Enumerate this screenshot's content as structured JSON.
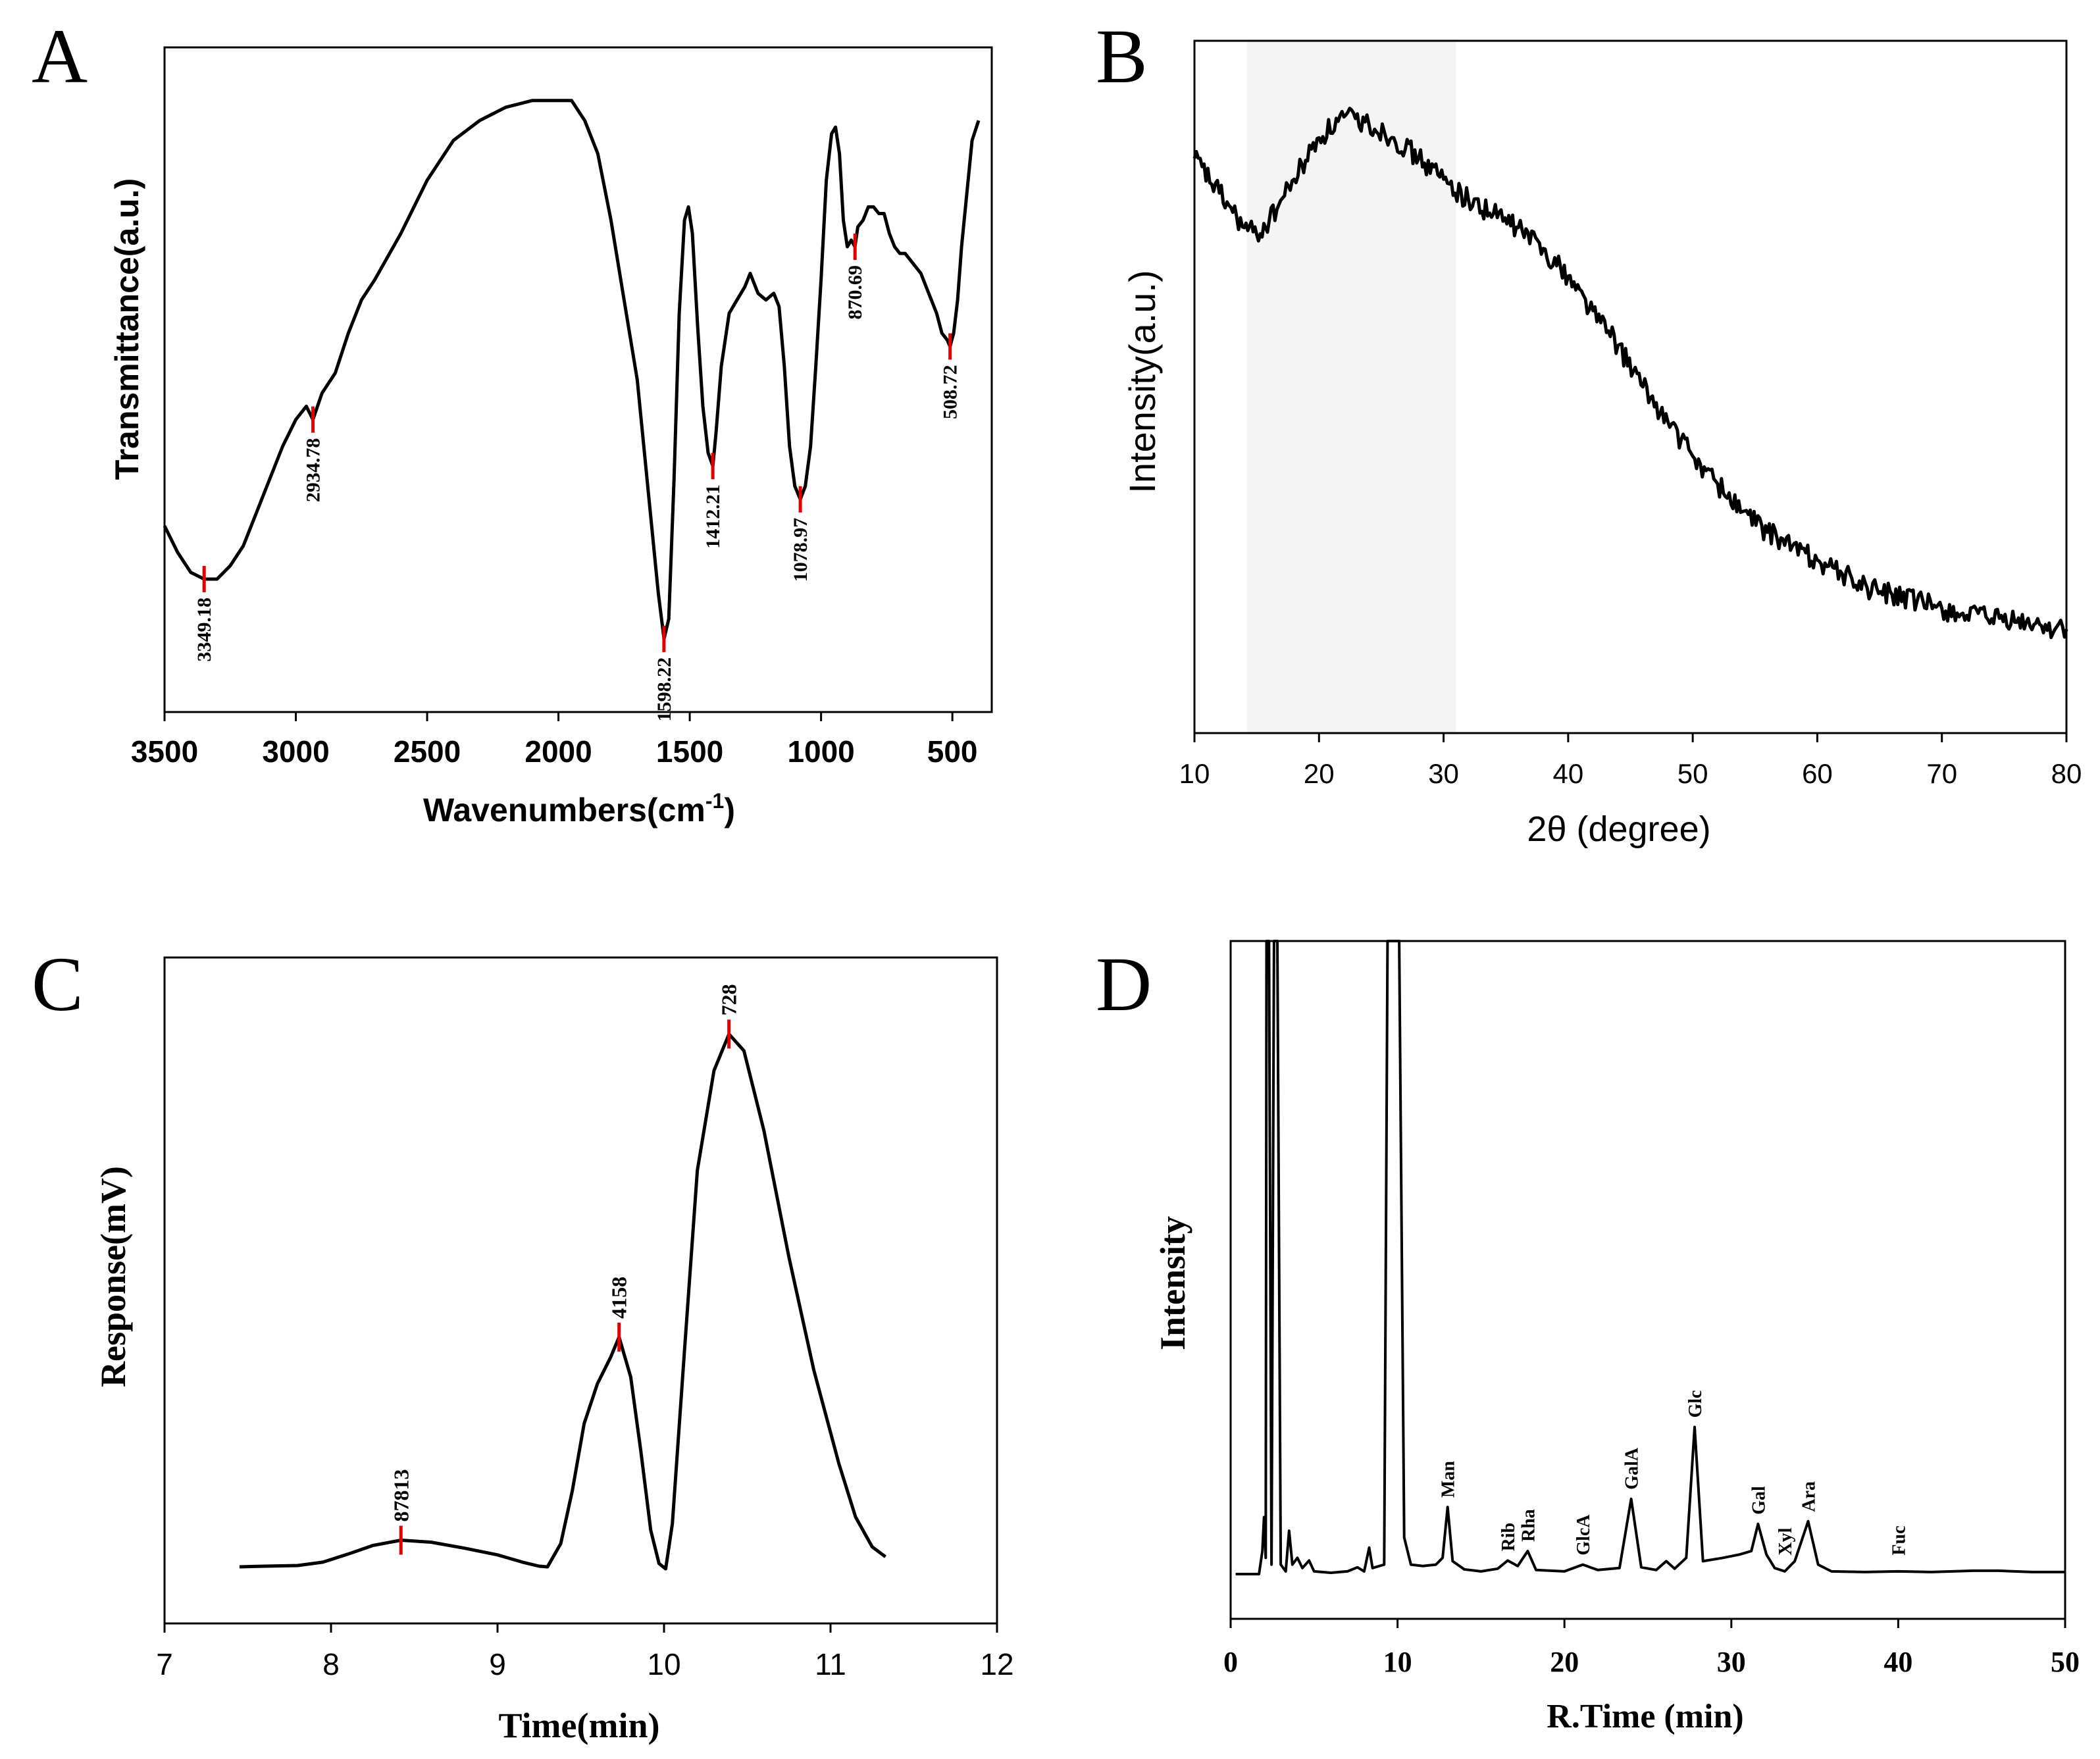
{
  "chart_data": [
    {
      "panel": "A",
      "type": "line",
      "xlabel": "Wavenumbers(cm",
      "xlabel_sup": "-1",
      "xlabel_close": ")",
      "ylabel": "Transmittance(a.u.)",
      "xlim": [
        3500,
        350
      ],
      "ylim": [
        0,
        100
      ],
      "xticks": [
        "3500",
        "3000",
        "2500",
        "2000",
        "1500",
        "1000",
        "500"
      ],
      "peak_labels": [
        "3349.18",
        "2934.78",
        "1598.22",
        "1412.21",
        "1078.97",
        "870.69",
        "508.72"
      ],
      "peaks": [
        {
          "x": 3349.18,
          "y": 20
        },
        {
          "x": 2934.78,
          "y": 44
        },
        {
          "x": 1598.22,
          "y": 11
        },
        {
          "x": 1412.21,
          "y": 37
        },
        {
          "x": 1078.97,
          "y": 32
        },
        {
          "x": 870.69,
          "y": 70
        },
        {
          "x": 508.72,
          "y": 55
        }
      ],
      "series": [
        [
          3500,
          28
        ],
        [
          3450,
          24
        ],
        [
          3400,
          21
        ],
        [
          3349,
          20
        ],
        [
          3300,
          20
        ],
        [
          3250,
          22
        ],
        [
          3200,
          25
        ],
        [
          3150,
          30
        ],
        [
          3100,
          35
        ],
        [
          3050,
          40
        ],
        [
          3000,
          44
        ],
        [
          2960,
          46
        ],
        [
          2935,
          44
        ],
        [
          2900,
          48
        ],
        [
          2850,
          51
        ],
        [
          2800,
          57
        ],
        [
          2750,
          62
        ],
        [
          2700,
          65
        ],
        [
          2600,
          72
        ],
        [
          2500,
          80
        ],
        [
          2400,
          86
        ],
        [
          2300,
          89
        ],
        [
          2250,
          90
        ],
        [
          2200,
          91
        ],
        [
          2100,
          92
        ],
        [
          2000,
          92
        ],
        [
          1950,
          92
        ],
        [
          1900,
          89
        ],
        [
          1850,
          84
        ],
        [
          1800,
          74
        ],
        [
          1750,
          62
        ],
        [
          1700,
          50
        ],
        [
          1650,
          30
        ],
        [
          1620,
          18
        ],
        [
          1598,
          11
        ],
        [
          1580,
          14
        ],
        [
          1560,
          35
        ],
        [
          1540,
          60
        ],
        [
          1520,
          74
        ],
        [
          1505,
          76
        ],
        [
          1490,
          72
        ],
        [
          1470,
          58
        ],
        [
          1450,
          46
        ],
        [
          1430,
          39
        ],
        [
          1412,
          37
        ],
        [
          1400,
          42
        ],
        [
          1380,
          52
        ],
        [
          1350,
          60
        ],
        [
          1320,
          62
        ],
        [
          1290,
          64
        ],
        [
          1270,
          66
        ],
        [
          1240,
          63
        ],
        [
          1210,
          62
        ],
        [
          1180,
          63
        ],
        [
          1160,
          61
        ],
        [
          1140,
          52
        ],
        [
          1120,
          40
        ],
        [
          1100,
          34
        ],
        [
          1079,
          32
        ],
        [
          1060,
          34
        ],
        [
          1040,
          40
        ],
        [
          1020,
          52
        ],
        [
          1000,
          65
        ],
        [
          980,
          80
        ],
        [
          960,
          87
        ],
        [
          945,
          88
        ],
        [
          930,
          84
        ],
        [
          915,
          74
        ],
        [
          900,
          70
        ],
        [
          885,
          71
        ],
        [
          871,
          70
        ],
        [
          860,
          73
        ],
        [
          840,
          74
        ],
        [
          820,
          76
        ],
        [
          800,
          76
        ],
        [
          780,
          75
        ],
        [
          760,
          75
        ],
        [
          740,
          72
        ],
        [
          720,
          70
        ],
        [
          700,
          69
        ],
        [
          680,
          69
        ],
        [
          660,
          68
        ],
        [
          640,
          67
        ],
        [
          620,
          66
        ],
        [
          600,
          64
        ],
        [
          580,
          62
        ],
        [
          560,
          60
        ],
        [
          540,
          57
        ],
        [
          520,
          56
        ],
        [
          509,
          55
        ],
        [
          495,
          57
        ],
        [
          480,
          62
        ],
        [
          465,
          70
        ],
        [
          450,
          76
        ],
        [
          435,
          82
        ],
        [
          425,
          86
        ],
        [
          400,
          89
        ]
      ]
    },
    {
      "panel": "B",
      "type": "line",
      "xlabel": "2θ (degree)",
      "ylabel": "Intensity(a.u.)",
      "xlim": [
        10,
        80
      ],
      "ylim": [
        0,
        100
      ],
      "xticks": [
        "10",
        "20",
        "30",
        "40",
        "50",
        "60",
        "70",
        "80"
      ],
      "shaded_region": [
        14.2,
        31
      ],
      "series": [
        [
          10,
          83
        ],
        [
          12,
          78
        ],
        [
          14,
          73
        ],
        [
          15,
          72
        ],
        [
          16,
          74
        ],
        [
          18,
          80
        ],
        [
          20,
          86
        ],
        [
          22,
          89
        ],
        [
          24,
          88
        ],
        [
          26,
          86
        ],
        [
          28,
          83
        ],
        [
          30,
          80
        ],
        [
          32,
          77
        ],
        [
          34,
          75
        ],
        [
          36,
          73
        ],
        [
          38,
          70
        ],
        [
          40,
          66
        ],
        [
          42,
          61
        ],
        [
          44,
          56
        ],
        [
          46,
          50
        ],
        [
          48,
          45
        ],
        [
          50,
          40
        ],
        [
          52,
          36
        ],
        [
          54,
          32
        ],
        [
          56,
          29
        ],
        [
          58,
          27
        ],
        [
          60,
          25
        ],
        [
          62,
          23
        ],
        [
          64,
          21
        ],
        [
          66,
          20
        ],
        [
          68,
          19
        ],
        [
          70,
          18
        ],
        [
          72,
          17
        ],
        [
          74,
          16.5
        ],
        [
          76,
          16
        ],
        [
          78,
          15.5
        ],
        [
          80,
          15
        ]
      ]
    },
    {
      "panel": "C",
      "type": "line",
      "xlabel": "Time(min)",
      "ylabel": "Response(mV)",
      "xlim": [
        7,
        12
      ],
      "ylim": [
        0,
        100
      ],
      "xticks": [
        "7",
        "8",
        "9",
        "10",
        "11",
        "12"
      ],
      "peak_labels": [
        "87813",
        "4158",
        "728"
      ],
      "peaks": [
        {
          "x": 8.42,
          "y": 12.5
        },
        {
          "x": 9.73,
          "y": 43
        },
        {
          "x": 10.39,
          "y": 88.5
        }
      ],
      "series": [
        [
          7.45,
          8.5
        ],
        [
          7.6,
          8.6
        ],
        [
          7.8,
          8.7
        ],
        [
          7.95,
          9.2
        ],
        [
          8.1,
          10.4
        ],
        [
          8.25,
          11.7
        ],
        [
          8.42,
          12.5
        ],
        [
          8.6,
          12.2
        ],
        [
          8.8,
          11.3
        ],
        [
          9.0,
          10.3
        ],
        [
          9.15,
          9.2
        ],
        [
          9.25,
          8.6
        ],
        [
          9.3,
          8.5
        ],
        [
          9.38,
          12
        ],
        [
          9.45,
          20
        ],
        [
          9.52,
          30
        ],
        [
          9.6,
          36
        ],
        [
          9.68,
          40
        ],
        [
          9.73,
          43
        ],
        [
          9.8,
          37
        ],
        [
          9.86,
          26
        ],
        [
          9.92,
          14
        ],
        [
          9.97,
          9
        ],
        [
          10.01,
          8.2
        ],
        [
          10.05,
          15
        ],
        [
          10.12,
          40
        ],
        [
          10.2,
          68
        ],
        [
          10.3,
          83
        ],
        [
          10.39,
          88.5
        ],
        [
          10.48,
          86
        ],
        [
          10.6,
          74
        ],
        [
          10.75,
          55
        ],
        [
          10.9,
          38
        ],
        [
          11.05,
          24
        ],
        [
          11.15,
          16
        ],
        [
          11.25,
          11.5
        ],
        [
          11.33,
          10
        ]
      ]
    },
    {
      "panel": "D",
      "type": "line",
      "xlabel": "R.Time (min)",
      "ylabel": "Intensity",
      "xlim": [
        0,
        50
      ],
      "ylim": [
        0,
        100
      ],
      "xticks": [
        "0",
        "10",
        "20",
        "30",
        "40",
        "50"
      ],
      "peak_labels": [
        {
          "name": "Man",
          "x": 13.0
        },
        {
          "name": "Rib",
          "x": 16.6
        },
        {
          "name": "Rha",
          "x": 17.8
        },
        {
          "name": "GlcA",
          "x": 21.1
        },
        {
          "name": "GalA",
          "x": 24.0
        },
        {
          "name": "Glc",
          "x": 27.8
        },
        {
          "name": "Gal",
          "x": 31.6
        },
        {
          "name": "Xyl",
          "x": 33.2
        },
        {
          "name": "Ara",
          "x": 34.6
        },
        {
          "name": "Fuc",
          "x": 40.0
        }
      ],
      "series": [
        [
          0.3,
          6.6
        ],
        [
          1.7,
          6.6
        ],
        [
          1.9,
          10
        ],
        [
          2.0,
          15
        ],
        [
          2.1,
          9
        ],
        [
          2.15,
          100
        ],
        [
          2.3,
          100
        ],
        [
          2.45,
          8
        ],
        [
          2.6,
          100
        ],
        [
          2.8,
          100
        ],
        [
          3.0,
          8
        ],
        [
          3.3,
          7
        ],
        [
          3.5,
          13
        ],
        [
          3.7,
          8
        ],
        [
          4.0,
          9
        ],
        [
          4.3,
          7.5
        ],
        [
          4.7,
          8.6
        ],
        [
          5.0,
          7
        ],
        [
          6,
          6.8
        ],
        [
          7,
          7
        ],
        [
          7.6,
          7.6
        ],
        [
          8.0,
          7
        ],
        [
          8.3,
          10.5
        ],
        [
          8.5,
          7.5
        ],
        [
          9.2,
          8
        ],
        [
          9.4,
          100
        ],
        [
          10.1,
          100
        ],
        [
          10.4,
          12
        ],
        [
          10.8,
          8
        ],
        [
          11.5,
          7.8
        ],
        [
          12.3,
          8
        ],
        [
          12.7,
          9
        ],
        [
          13.0,
          16.5
        ],
        [
          13.3,
          8.5
        ],
        [
          14,
          7.3
        ],
        [
          15,
          7
        ],
        [
          16,
          7.4
        ],
        [
          16.6,
          8.6
        ],
        [
          17.2,
          7.8
        ],
        [
          17.8,
          10
        ],
        [
          18.3,
          7.2
        ],
        [
          20,
          7
        ],
        [
          21.1,
          8
        ],
        [
          22,
          7.2
        ],
        [
          23.3,
          7.5
        ],
        [
          24.0,
          17.7
        ],
        [
          24.6,
          7.6
        ],
        [
          25.5,
          7.2
        ],
        [
          26.1,
          8.5
        ],
        [
          26.6,
          7.4
        ],
        [
          27.3,
          9
        ],
        [
          27.8,
          28.3
        ],
        [
          28.3,
          8.5
        ],
        [
          29.5,
          9
        ],
        [
          30.5,
          9.5
        ],
        [
          31.2,
          10
        ],
        [
          31.6,
          14
        ],
        [
          32.1,
          9.5
        ],
        [
          32.6,
          7.5
        ],
        [
          33.2,
          7
        ],
        [
          33.8,
          8.5
        ],
        [
          34.6,
          14.4
        ],
        [
          35.2,
          8
        ],
        [
          36,
          7
        ],
        [
          38,
          6.9
        ],
        [
          40,
          7
        ],
        [
          42,
          6.9
        ],
        [
          44.5,
          7.1
        ],
        [
          46,
          7.1
        ],
        [
          48,
          6.9
        ],
        [
          50,
          6.9
        ]
      ]
    }
  ],
  "panels": {
    "a_letter": "A",
    "b_letter": "B",
    "c_letter": "C",
    "d_letter": "D"
  }
}
